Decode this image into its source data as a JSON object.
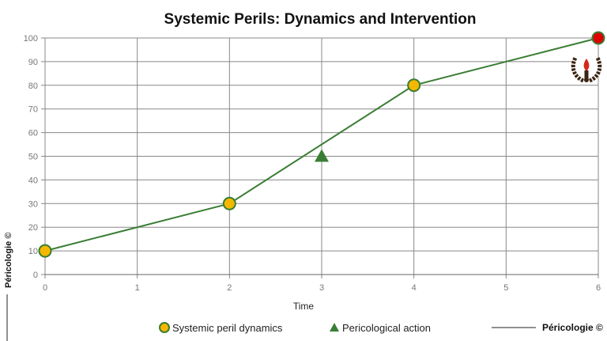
{
  "chart_data": {
    "type": "line",
    "title": "Systemic Perils: Dynamics and Intervention",
    "xlabel": "Time",
    "ylabel": "",
    "xlim": [
      0,
      6
    ],
    "ylim": [
      0,
      100
    ],
    "x_ticks": [
      0,
      1,
      2,
      3,
      4,
      5,
      6
    ],
    "y_ticks": [
      0,
      10,
      20,
      30,
      40,
      50,
      60,
      70,
      80,
      90,
      100
    ],
    "grid": true,
    "legend_position": "bottom",
    "series": [
      {
        "name": "Systemic peril dynamics",
        "x": [
          0,
          2,
          4,
          6
        ],
        "y": [
          10,
          30,
          80,
          100
        ],
        "color": "#3a7d34",
        "marker_color": "#f5b800",
        "end_marker_color": "#e00000"
      },
      {
        "name": "Pericological action",
        "x": [
          3
        ],
        "y": [
          50
        ],
        "marker": "triangle",
        "color": "#3a7d34"
      }
    ],
    "watermark_side": "Péricologie ©",
    "legend_extra": "Péricologie ©"
  }
}
